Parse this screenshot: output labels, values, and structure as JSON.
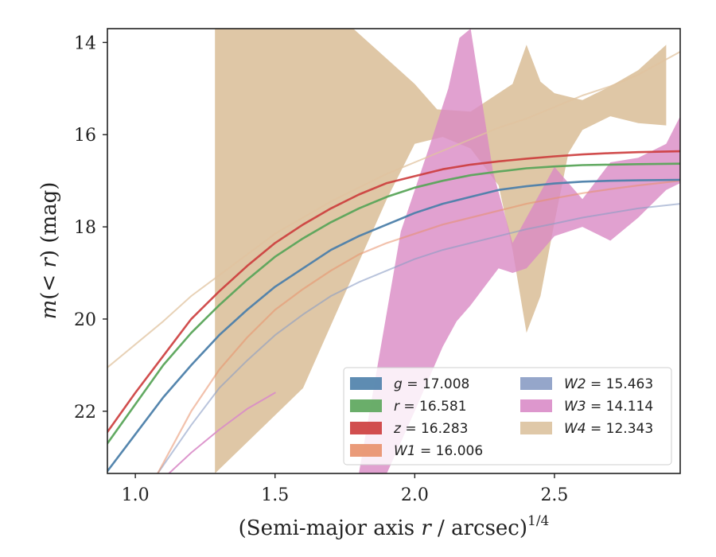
{
  "chart_data": {
    "type": "line",
    "title": "",
    "xlabel": "(Semi-major axis r / arcsec)^1/4",
    "ylabel": "m(<r) (mag)",
    "xlim": [
      0.9,
      2.95
    ],
    "ylim": [
      23.35,
      13.7
    ],
    "y_inverted": true,
    "grid": false,
    "legend_placement": "lower-right",
    "x_ticks": [
      "1.0",
      "1.5",
      "2.0",
      "2.5"
    ],
    "x_tick_values": [
      1.0,
      1.5,
      2.0,
      2.5
    ],
    "y_ticks": [
      "14",
      "16",
      "18",
      "20",
      "22"
    ],
    "y_tick_values": [
      14,
      16,
      18,
      20,
      22
    ],
    "series": [
      {
        "name": "g = 17.008",
        "color": "#4c7faa",
        "opacity": 0.95,
        "width": 2.6,
        "x": [
          0.9,
          1.0,
          1.1,
          1.2,
          1.3,
          1.4,
          1.5,
          1.6,
          1.7,
          1.8,
          1.9,
          2.0,
          2.1,
          2.2,
          2.3,
          2.4,
          2.5,
          2.6,
          2.7,
          2.8,
          2.95
        ],
        "y": [
          23.3,
          22.5,
          21.7,
          21.0,
          20.35,
          19.8,
          19.3,
          18.9,
          18.5,
          18.2,
          17.95,
          17.7,
          17.5,
          17.35,
          17.2,
          17.12,
          17.06,
          17.02,
          17.0,
          16.99,
          16.98
        ]
      },
      {
        "name": "r = 16.581",
        "color": "#5aa55a",
        "opacity": 0.95,
        "width": 2.6,
        "x": [
          0.9,
          1.0,
          1.1,
          1.2,
          1.3,
          1.4,
          1.5,
          1.6,
          1.7,
          1.8,
          1.9,
          2.0,
          2.1,
          2.2,
          2.3,
          2.4,
          2.5,
          2.6,
          2.7,
          2.8,
          2.95
        ],
        "y": [
          22.7,
          21.85,
          21.0,
          20.3,
          19.7,
          19.15,
          18.65,
          18.25,
          17.9,
          17.6,
          17.35,
          17.15,
          17.0,
          16.88,
          16.8,
          16.73,
          16.69,
          16.66,
          16.65,
          16.64,
          16.63
        ]
      },
      {
        "name": "z = 16.283",
        "color": "#cc3b3b",
        "opacity": 0.9,
        "width": 2.6,
        "x": [
          0.9,
          1.0,
          1.1,
          1.2,
          1.3,
          1.4,
          1.5,
          1.6,
          1.7,
          1.8,
          1.9,
          2.0,
          2.1,
          2.2,
          2.3,
          2.4,
          2.5,
          2.6,
          2.7,
          2.8,
          2.95
        ],
        "y": [
          22.45,
          21.6,
          20.8,
          20.0,
          19.4,
          18.85,
          18.35,
          17.95,
          17.6,
          17.3,
          17.05,
          16.9,
          16.75,
          16.65,
          16.58,
          16.52,
          16.47,
          16.43,
          16.4,
          16.38,
          16.36
        ]
      },
      {
        "name": "W1 = 16.006",
        "color": "#e8906a",
        "opacity": 0.55,
        "width": 2.2,
        "x": [
          1.08,
          1.2,
          1.3,
          1.4,
          1.5,
          1.6,
          1.7,
          1.8,
          1.9,
          2.0,
          2.1,
          2.2,
          2.3,
          2.4,
          2.5,
          2.6,
          2.7,
          2.8,
          2.95
        ],
        "y": [
          23.35,
          22.0,
          21.1,
          20.4,
          19.8,
          19.35,
          18.95,
          18.6,
          18.35,
          18.15,
          17.95,
          17.8,
          17.65,
          17.5,
          17.38,
          17.27,
          17.18,
          17.1,
          17.0
        ]
      },
      {
        "name": "W2 = 15.463",
        "color": "#8a9cc4",
        "opacity": 0.6,
        "width": 2.0,
        "x": [
          1.08,
          1.2,
          1.3,
          1.4,
          1.5,
          1.6,
          1.7,
          1.8,
          1.9,
          2.0,
          2.1,
          2.2,
          2.3,
          2.4,
          2.5,
          2.6,
          2.7,
          2.8,
          2.95
        ],
        "y": [
          23.35,
          22.3,
          21.5,
          20.9,
          20.35,
          19.9,
          19.5,
          19.2,
          18.95,
          18.7,
          18.5,
          18.35,
          18.2,
          18.05,
          17.93,
          17.8,
          17.7,
          17.6,
          17.5
        ]
      },
      {
        "name": "W3 = 14.114",
        "color": "#d98cc8",
        "opacity": 0.9,
        "width": 2.0,
        "x": [
          1.12,
          1.2,
          1.3,
          1.4,
          1.5
        ],
        "y": [
          23.35,
          22.9,
          22.4,
          21.95,
          21.6
        ]
      },
      {
        "name": "W4 = 12.343",
        "color": "#e0c39f",
        "opacity": 0.75,
        "width": 2.0,
        "x": [
          0.9,
          1.0,
          1.1,
          1.2,
          1.3,
          1.4,
          1.5,
          1.6,
          1.7,
          1.8,
          1.9,
          2.0,
          2.1,
          2.2,
          2.3,
          2.4,
          2.5,
          2.6,
          2.7,
          2.8,
          2.95
        ],
        "y": [
          21.05,
          20.55,
          20.05,
          19.5,
          19.05,
          18.6,
          18.15,
          17.8,
          17.45,
          17.15,
          16.85,
          16.6,
          16.35,
          16.1,
          15.85,
          15.65,
          15.4,
          15.15,
          14.95,
          14.7,
          14.2
        ]
      }
    ],
    "bands": [
      {
        "name": "W4 = 12.343",
        "color": "#dcc29e",
        "opacity": 0.92,
        "x": [
          1.285,
          1.285,
          1.78,
          2.0,
          2.08,
          2.2,
          2.35,
          2.4,
          2.45,
          2.5,
          2.6,
          2.7,
          2.8,
          2.9,
          2.9,
          2.8,
          2.7,
          2.6,
          2.55,
          2.5,
          2.45,
          2.4,
          2.35,
          2.3,
          2.2,
          2.1,
          2.0,
          1.9,
          1.6,
          1.285
        ],
        "y": [
          23.35,
          13.7,
          13.7,
          14.9,
          15.45,
          15.5,
          14.9,
          14.05,
          14.85,
          15.1,
          15.25,
          14.95,
          14.6,
          14.05,
          15.8,
          15.75,
          15.6,
          15.9,
          16.4,
          17.9,
          19.5,
          20.3,
          18.5,
          17.1,
          16.3,
          16.05,
          16.2,
          17.4,
          21.5,
          23.35
        ]
      },
      {
        "name": "W3 = 14.114",
        "color": "#d98ac4",
        "opacity": 0.8,
        "x": [
          1.8,
          1.95,
          2.05,
          2.12,
          2.16,
          2.2,
          2.28,
          2.35,
          2.4,
          2.5,
          2.6,
          2.7,
          2.8,
          2.9,
          2.95,
          2.95,
          2.9,
          2.8,
          2.7,
          2.6,
          2.5,
          2.4,
          2.35,
          2.3,
          2.25,
          2.2,
          2.15,
          2.1,
          2.0,
          1.9,
          1.8
        ],
        "y": [
          23.35,
          18.1,
          16.3,
          15.0,
          13.9,
          13.7,
          16.8,
          18.35,
          17.8,
          16.7,
          17.4,
          16.6,
          16.5,
          16.2,
          15.6,
          17.05,
          17.2,
          17.8,
          18.3,
          18.0,
          18.2,
          18.9,
          19.0,
          18.9,
          19.3,
          19.7,
          20.05,
          20.6,
          22.0,
          23.35,
          23.35
        ]
      }
    ],
    "legend": {
      "columns": [
        [
          "g = 17.008",
          "r = 16.581",
          "z = 16.283",
          "W1 = 16.006"
        ],
        [
          "W2 = 15.463",
          "W3 = 14.114",
          "W4 = 12.343"
        ]
      ],
      "entries": [
        {
          "var": "g",
          "value": "17.008",
          "color": "#4c7faa"
        },
        {
          "var": "r",
          "value": "16.581",
          "color": "#5aa55a"
        },
        {
          "var": "z",
          "value": "16.283",
          "color": "#cc3b3b"
        },
        {
          "var": "W1",
          "value": "16.006",
          "color": "#e8906a"
        },
        {
          "var": "W2",
          "value": "15.463",
          "color": "#8a9cc4"
        },
        {
          "var": "W3",
          "value": "14.114",
          "color": "#d98cc8"
        },
        {
          "var": "W4",
          "value": "12.343",
          "color": "#dcc29e"
        }
      ]
    }
  }
}
